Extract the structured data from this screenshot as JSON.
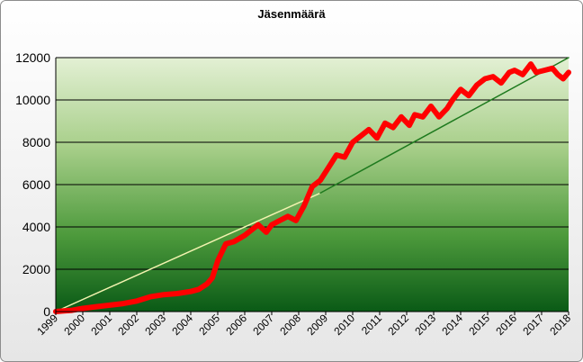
{
  "chart_data": {
    "type": "line",
    "title": "Jäsenmäärä",
    "xlabel": "",
    "ylabel": "",
    "xlim": [
      1999,
      2018
    ],
    "ylim": [
      0,
      12000
    ],
    "y_ticks": [
      0,
      2000,
      4000,
      6000,
      8000,
      10000,
      12000
    ],
    "x_ticks": [
      1999,
      2000,
      2001,
      2002,
      2003,
      2004,
      2005,
      2006,
      2007,
      2008,
      2009,
      2010,
      2011,
      2012,
      2013,
      2014,
      2015,
      2016,
      2017,
      2018
    ],
    "grid": "horizontal",
    "legend": "none",
    "series": [
      {
        "color": "#ff0000",
        "x": [
          1999.0,
          1999.3,
          1999.6,
          2000.0,
          2000.5,
          2001.0,
          2001.5,
          2002.0,
          2002.5,
          2003.0,
          2003.5,
          2004.0,
          2004.3,
          2004.6,
          2004.8,
          2005.0,
          2005.3,
          2005.6,
          2006.0,
          2006.3,
          2006.5,
          2006.8,
          2007.0,
          2007.3,
          2007.6,
          2007.9,
          2008.2,
          2008.5,
          2008.8,
          2009.1,
          2009.4,
          2009.7,
          2010.0,
          2010.3,
          2010.6,
          2010.9,
          2011.2,
          2011.5,
          2011.8,
          2012.1,
          2012.3,
          2012.6,
          2012.9,
          2013.2,
          2013.5,
          2013.7,
          2014.0,
          2014.3,
          2014.6,
          2014.9,
          2015.2,
          2015.5,
          2015.8,
          2016.0,
          2016.3,
          2016.6,
          2016.8,
          2017.1,
          2017.4,
          2017.6,
          2017.8,
          2018.0
        ],
        "y": [
          0,
          30,
          60,
          150,
          230,
          300,
          380,
          500,
          700,
          800,
          850,
          950,
          1050,
          1300,
          1600,
          2400,
          3200,
          3300,
          3600,
          3900,
          4100,
          3750,
          4100,
          4300,
          4500,
          4300,
          5000,
          5900,
          6200,
          6800,
          7400,
          7300,
          8000,
          8300,
          8600,
          8200,
          8900,
          8700,
          9200,
          8800,
          9300,
          9200,
          9700,
          9200,
          9600,
          10000,
          10500,
          10200,
          10700,
          11000,
          11100,
          10800,
          11300,
          11400,
          11200,
          11700,
          11300,
          11400,
          11500,
          11200,
          11000,
          11300
        ]
      },
      {
        "color": "#f3f3b0",
        "x": [
          1999.0,
          2008.8
        ],
        "y": [
          0,
          5600
        ]
      },
      {
        "color": "#1e7a1e",
        "x": [
          2008.8,
          2018.0
        ],
        "y": [
          5600,
          12000
        ]
      }
    ]
  }
}
